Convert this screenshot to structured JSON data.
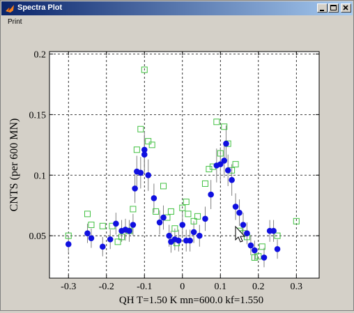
{
  "window": {
    "title": "Spectra Plot",
    "minimize_icon": "minimize-icon",
    "maximize_icon": "maximize-icon",
    "close_icon": "close-icon"
  },
  "menu": {
    "items": [
      {
        "label": "Print"
      }
    ]
  },
  "colors": {
    "series_blue": "#1010e0",
    "series_green": "#40c040",
    "errorbar": "#808080",
    "titlebar_start": "#0a246a",
    "titlebar_end": "#a6caf0"
  },
  "chart_data": {
    "type": "scatter",
    "xlabel": "QH    T=1.50 K mn=600.0 kf=1.550",
    "ylabel": "CNTS (per 600 MN)",
    "xlim": [
      -0.35,
      0.36
    ],
    "ylim": [
      0.015,
      0.202
    ],
    "xticks": [
      -0.3,
      -0.2,
      -0.1,
      0,
      0.1,
      0.2,
      0.3
    ],
    "xtick_labels": [
      "-0.3",
      "-0.2",
      "-0.1",
      "0",
      "0.1",
      "0.2",
      "0.3"
    ],
    "yticks": [
      0.05,
      0.1,
      0.15,
      0.2
    ],
    "ytick_labels": [
      "0.05",
      "0.1",
      "0.15",
      "0.2"
    ],
    "grid": true,
    "series": [
      {
        "marker": "filled-circle",
        "color": "#1010e0",
        "points": [
          [
            -0.3,
            0.043,
            0.007
          ],
          [
            -0.25,
            0.052,
            0.008
          ],
          [
            -0.24,
            0.048,
            0.008
          ],
          [
            -0.21,
            0.041,
            0.008
          ],
          [
            -0.19,
            0.047,
            0.008
          ],
          [
            -0.175,
            0.06,
            0.009
          ],
          [
            -0.16,
            0.054,
            0.009
          ],
          [
            -0.15,
            0.055,
            0.009
          ],
          [
            -0.14,
            0.054,
            0.009
          ],
          [
            -0.13,
            0.059,
            0.009
          ],
          [
            -0.125,
            0.089,
            0.012
          ],
          [
            -0.12,
            0.103,
            0.013
          ],
          [
            -0.11,
            0.102,
            0.013
          ],
          [
            -0.1,
            0.121,
            0.015
          ],
          [
            -0.1,
            0.117,
            0.015
          ],
          [
            -0.09,
            0.1,
            0.013
          ],
          [
            -0.075,
            0.081,
            0.012
          ],
          [
            -0.06,
            0.061,
            0.01
          ],
          [
            -0.05,
            0.065,
            0.01
          ],
          [
            -0.035,
            0.05,
            0.009
          ],
          [
            -0.03,
            0.045,
            0.009
          ],
          [
            -0.02,
            0.047,
            0.009
          ],
          [
            -0.01,
            0.046,
            0.009
          ],
          [
            0.0,
            0.059,
            0.01
          ],
          [
            0.01,
            0.046,
            0.009
          ],
          [
            0.02,
            0.046,
            0.009
          ],
          [
            0.03,
            0.053,
            0.009
          ],
          [
            0.045,
            0.05,
            0.009
          ],
          [
            0.06,
            0.064,
            0.01
          ],
          [
            0.075,
            0.084,
            0.012
          ],
          [
            0.09,
            0.108,
            0.014
          ],
          [
            0.1,
            0.109,
            0.014
          ],
          [
            0.11,
            0.112,
            0.014
          ],
          [
            0.115,
            0.126,
            0.015
          ],
          [
            0.12,
            0.104,
            0.013
          ],
          [
            0.13,
            0.096,
            0.013
          ],
          [
            0.14,
            0.074,
            0.011
          ],
          [
            0.15,
            0.069,
            0.011
          ],
          [
            0.16,
            0.059,
            0.01
          ],
          [
            0.17,
            0.052,
            0.009
          ],
          [
            0.18,
            0.042,
            0.008
          ],
          [
            0.19,
            0.038,
            0.008
          ],
          [
            0.215,
            0.032,
            0.008
          ],
          [
            0.23,
            0.054,
            0.009
          ],
          [
            0.24,
            0.054,
            0.009
          ],
          [
            0.25,
            0.039,
            0.008
          ]
        ]
      },
      {
        "marker": "open-square",
        "color": "#40c040",
        "points": [
          [
            -0.3,
            0.05
          ],
          [
            -0.25,
            0.068
          ],
          [
            -0.24,
            0.059
          ],
          [
            -0.21,
            0.058
          ],
          [
            -0.185,
            0.058
          ],
          [
            -0.17,
            0.045
          ],
          [
            -0.16,
            0.049
          ],
          [
            -0.14,
            0.054
          ],
          [
            -0.13,
            0.072
          ],
          [
            -0.12,
            0.121
          ],
          [
            -0.11,
            0.138
          ],
          [
            -0.1,
            0.187
          ],
          [
            -0.09,
            0.128
          ],
          [
            -0.08,
            0.125
          ],
          [
            -0.07,
            0.07
          ],
          [
            -0.05,
            0.091
          ],
          [
            -0.04,
            0.065
          ],
          [
            -0.03,
            0.07
          ],
          [
            -0.02,
            0.056
          ],
          [
            -0.015,
            0.044
          ],
          [
            0.0,
            0.073
          ],
          [
            0.01,
            0.078
          ],
          [
            0.015,
            0.068
          ],
          [
            0.03,
            0.062
          ],
          [
            0.04,
            0.066
          ],
          [
            0.06,
            0.093
          ],
          [
            0.07,
            0.105
          ],
          [
            0.08,
            0.107
          ],
          [
            0.09,
            0.144
          ],
          [
            0.1,
            0.118
          ],
          [
            0.11,
            0.14
          ],
          [
            0.12,
            0.126
          ],
          [
            0.13,
            0.104
          ],
          [
            0.14,
            0.109
          ],
          [
            0.15,
            0.054
          ],
          [
            0.16,
            0.052
          ],
          [
            0.17,
            0.049
          ],
          [
            0.19,
            0.032
          ],
          [
            0.2,
            0.033
          ],
          [
            0.21,
            0.041
          ],
          [
            0.25,
            0.05
          ],
          [
            0.3,
            0.062
          ]
        ]
      }
    ]
  }
}
